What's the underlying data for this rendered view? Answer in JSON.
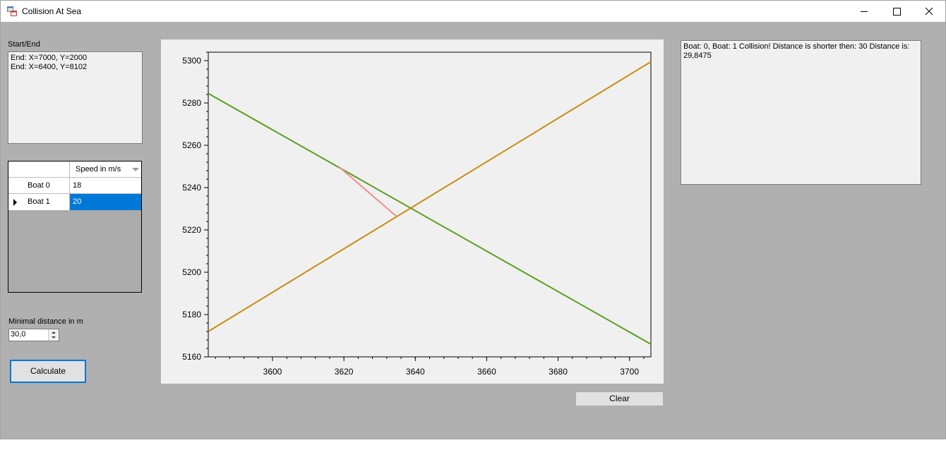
{
  "window": {
    "title": "Collision At Sea"
  },
  "start_end": {
    "label": "Start/End",
    "lines": [
      "End: X=7000, Y=2000",
      "End: X=6400, Y=8102"
    ]
  },
  "grid": {
    "column_header": "Speed in m/s",
    "rows": [
      {
        "label": "Boat 0",
        "speed": "18",
        "selected": false
      },
      {
        "label": "Boat 1",
        "speed": "20",
        "selected": true
      }
    ]
  },
  "min_distance": {
    "label": "Minimal distance in m",
    "value": "30,0"
  },
  "buttons": {
    "calculate": "Calculate",
    "clear": "Clear"
  },
  "log": {
    "text": "Boat: 0, Boat: 1 Collision! Distance is shorter then: 30 Distance is: 29,8475"
  },
  "chart_data": {
    "type": "line",
    "xlim": [
      3582,
      3706
    ],
    "ylim": [
      5160,
      5304
    ],
    "x_ticks": [
      3600,
      3620,
      3640,
      3660,
      3680,
      3700
    ],
    "y_ticks": [
      5160,
      5180,
      5200,
      5220,
      5240,
      5260,
      5280,
      5300
    ],
    "series": [
      {
        "color": "#5a9e1e",
        "points": [
          [
            3582,
            5284.5
          ],
          [
            3706,
            5166
          ]
        ]
      },
      {
        "color": "#c88c14",
        "points": [
          [
            3582,
            5172
          ],
          [
            3706,
            5299.5
          ]
        ]
      },
      {
        "color": "#f08c8c",
        "points": [
          [
            3618.5,
            5250
          ],
          [
            3635,
            5226
          ]
        ]
      }
    ]
  }
}
